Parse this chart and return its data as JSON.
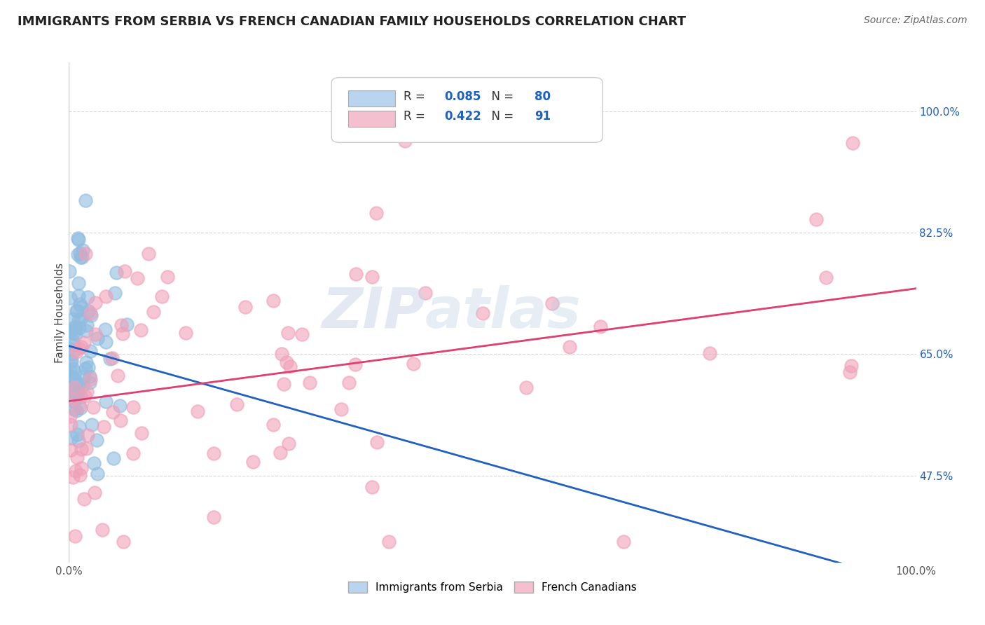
{
  "title": "IMMIGRANTS FROM SERBIA VS FRENCH CANADIAN FAMILY HOUSEHOLDS CORRELATION CHART",
  "source": "Source: ZipAtlas.com",
  "ylabel": "Family Households",
  "y_tick_labels": [
    "47.5%",
    "65.0%",
    "82.5%",
    "100.0%"
  ],
  "y_tick_values": [
    0.475,
    0.65,
    0.825,
    1.0
  ],
  "xlim": [
    0.0,
    1.0
  ],
  "ylim": [
    0.35,
    1.07
  ],
  "legend_label_1": "Immigrants from Serbia",
  "legend_label_2": "French Canadians",
  "R1": 0.085,
  "N1": 80,
  "R2": 0.422,
  "N2": 91,
  "blue_scatter_color": "#90bce0",
  "blue_line_color": "#2060c0",
  "pink_scatter_color": "#f0a0b8",
  "pink_line_color": "#e04070",
  "dashed_line_color": "#a0b8d0",
  "legend_box_blue": "#b8d4ee",
  "legend_box_pink": "#f4c0d0",
  "background_color": "#ffffff",
  "grid_color": "#cccccc",
  "title_fontsize": 13,
  "source_fontsize": 10,
  "axis_label_fontsize": 11,
  "tick_fontsize": 11,
  "legend_fontsize": 12,
  "scatter_size": 180,
  "scatter_alpha": 0.6,
  "scatter_lw": 1.5
}
